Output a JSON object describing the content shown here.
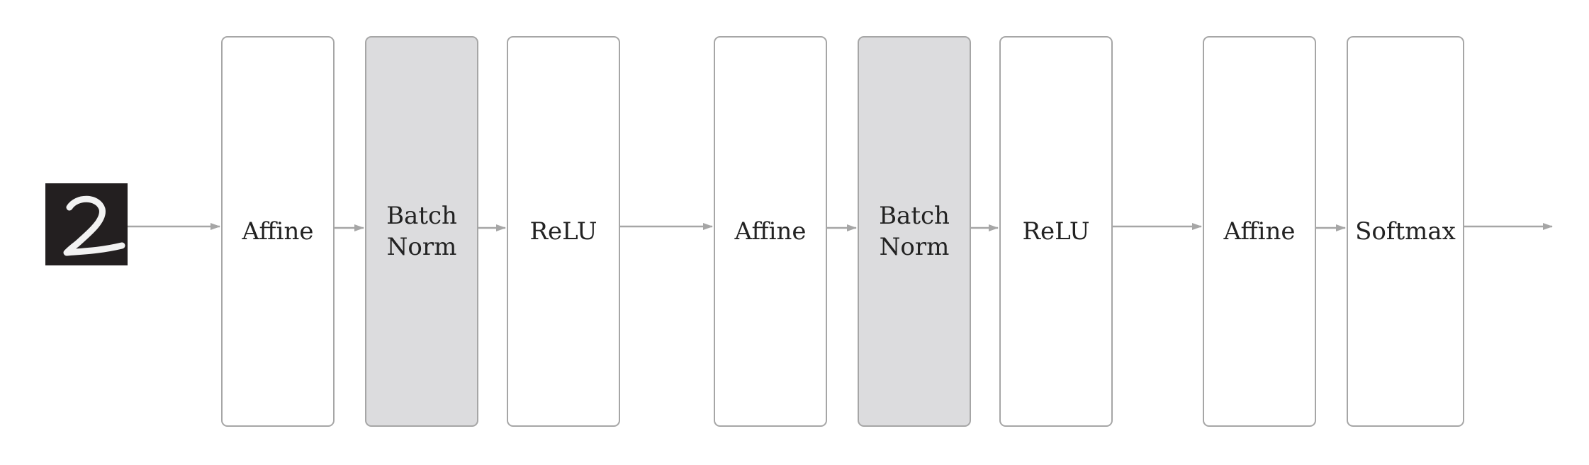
{
  "input": {
    "icon": "handwritten-digit-2-icon",
    "colors": {
      "background": "#231f20",
      "stroke": "#ffffff"
    }
  },
  "layers": [
    {
      "label": "Affine",
      "type": "affine"
    },
    {
      "label": "Batch\nNorm",
      "type": "batchnorm"
    },
    {
      "label": "ReLU",
      "type": "relu"
    },
    {
      "label": "Affine",
      "type": "affine"
    },
    {
      "label": "Batch\nNorm",
      "type": "batchnorm"
    },
    {
      "label": "ReLU",
      "type": "relu"
    },
    {
      "label": "Affine",
      "type": "affine"
    },
    {
      "label": "Softmax",
      "type": "softmax"
    }
  ],
  "colors": {
    "border": "#a6a6a6",
    "batchnorm_fill": "#dcdcde",
    "arrow": "#a6a6a6",
    "text": "#222222"
  }
}
